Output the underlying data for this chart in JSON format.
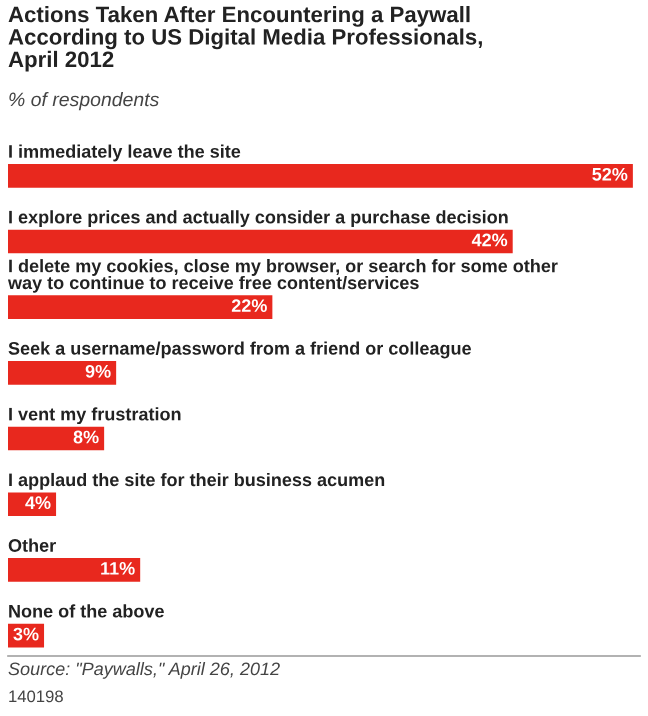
{
  "chart_data": {
    "type": "bar",
    "orientation": "horizontal",
    "title": "Actions Taken After Encountering a Paywall\nAccording to US Digital Media Professionals,\nApril 2012",
    "subtitle": "% of respondents",
    "categories": [
      "I immediately leave the site",
      "I explore prices and actually consider a purchase decision",
      "I delete my cookies, close my browser, or search for some other\nway to continue to receive free content/services",
      "Seek a username/password from a friend or colleague",
      "I vent my frustration",
      "I applaud the site for their business acumen",
      "Other",
      "None of the above"
    ],
    "values": [
      52,
      42,
      22,
      9,
      8,
      4,
      11,
      3
    ],
    "value_labels": [
      "52%",
      "42%",
      "22%",
      "9%",
      "8%",
      "4%",
      "11%",
      "3%"
    ],
    "color": "#e8281e",
    "annotations": [
      "Source: \"Paywalls,\" April 26, 2012",
      "140198"
    ]
  }
}
